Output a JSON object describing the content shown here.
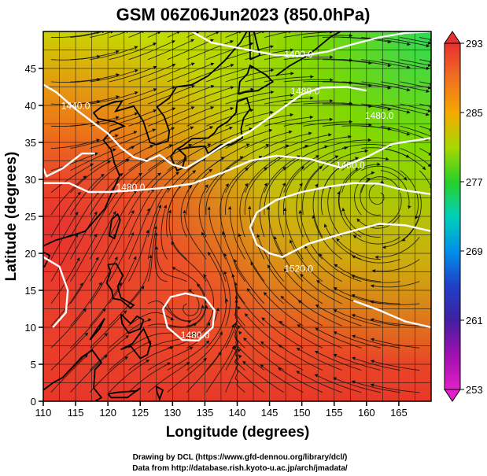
{
  "title": "GSM 06Z06Jun2023 (850.0hPa)",
  "xlabel": "Longitude (degrees)",
  "ylabel": "Latitude (degrees)",
  "credits": {
    "line1": "Drawing by DCL (https://www.gfd-dennou.org/library/dcl/)",
    "line2": "Data from http://database.rish.kyoto-u.ac.jp/arch/jmadata/"
  },
  "map": {
    "lon_range": [
      110,
      170
    ],
    "lat_range": [
      0,
      50
    ],
    "lon_ticks": [
      "110",
      "115",
      "120",
      "125",
      "130",
      "135",
      "140",
      "145",
      "150",
      "155",
      "160",
      "165"
    ],
    "lat_ticks": [
      "0",
      "5",
      "10",
      "15",
      "20",
      "25",
      "30",
      "35",
      "40",
      "45"
    ],
    "contour_labels": [
      {
        "text": "1400.0",
        "lon": 149.5,
        "lat": 46.5
      },
      {
        "text": "1440.0",
        "lon": 115.0,
        "lat": 39.5
      },
      {
        "text": "1480.0",
        "lon": 150.5,
        "lat": 41.5
      },
      {
        "text": "1480.0",
        "lon": 162.0,
        "lat": 38.2
      },
      {
        "text": "1480.0",
        "lon": 123.5,
        "lat": 28.5
      },
      {
        "text": "1480.0",
        "lon": 157.5,
        "lat": 31.5
      },
      {
        "text": "1520.0",
        "lon": 149.5,
        "lat": 17.5
      },
      {
        "text": "1480.0",
        "lon": 133.5,
        "lat": 8.5
      }
    ]
  },
  "colorbar": {
    "ticks": [
      "293",
      "285",
      "277",
      "269",
      "261",
      "253"
    ],
    "colors": [
      "#e83030",
      "#f07020",
      "#f5a800",
      "#a8d800",
      "#28d028",
      "#00d0b8",
      "#0090e8",
      "#2040c8",
      "#4020a0",
      "#a010b0",
      "#e020c8"
    ]
  }
}
